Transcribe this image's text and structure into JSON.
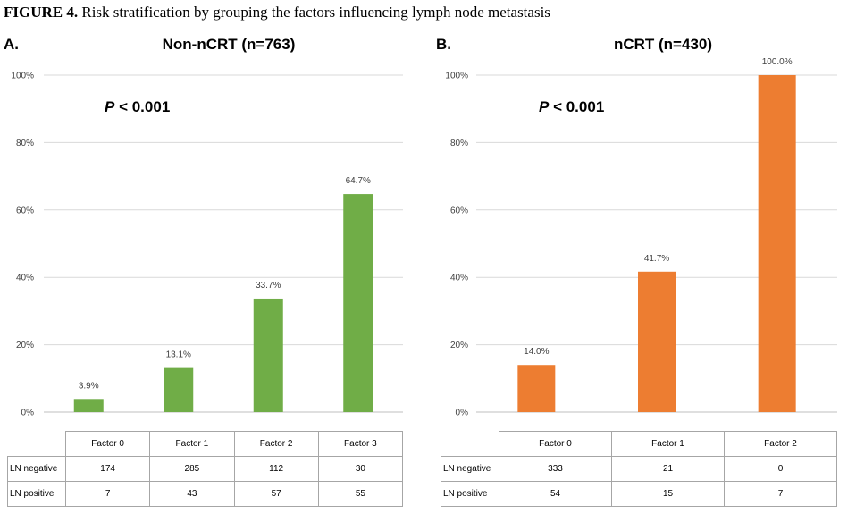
{
  "figure_title": {
    "label": "FIGURE 4.",
    "text": "Risk stratification by grouping the factors influencing lymph node metastasis"
  },
  "chart_data": [
    {
      "type": "bar",
      "panel": "A.",
      "title": "Non-nCRT (n=763)",
      "annotation": {
        "prefix": "P",
        "text": "< 0.001"
      },
      "categories": [
        "Factor 0",
        "Factor 1",
        "Factor 2",
        "Factor 3"
      ],
      "values": [
        3.9,
        13.1,
        33.7,
        64.7
      ],
      "data_labels": [
        "3.9%",
        "13.1%",
        "33.7%",
        "64.7%"
      ],
      "ylim": [
        0,
        100
      ],
      "yticks": [
        "0%",
        "20%",
        "40%",
        "60%",
        "80%",
        "100%"
      ],
      "ytick_values": [
        0,
        20,
        40,
        60,
        80,
        100
      ],
      "grid": true,
      "color": "#70ad47",
      "table": {
        "header": [
          "Factor 0",
          "Factor 1",
          "Factor 2",
          "Factor 3"
        ],
        "rows": [
          {
            "label": "LN negative",
            "values": [
              "174",
              "285",
              "112",
              "30"
            ]
          },
          {
            "label": "LN positive",
            "values": [
              "7",
              "43",
              "57",
              "55"
            ]
          }
        ]
      }
    },
    {
      "type": "bar",
      "panel": "B.",
      "title": "nCRT (n=430)",
      "annotation": {
        "prefix": "P",
        "text": "< 0.001"
      },
      "categories": [
        "Factor 0",
        "Factor 1",
        "Factor 2"
      ],
      "values": [
        14.0,
        41.7,
        100.0
      ],
      "data_labels": [
        "14.0%",
        "41.7%",
        "100.0%"
      ],
      "ylim": [
        0,
        100
      ],
      "yticks": [
        "0%",
        "20%",
        "40%",
        "60%",
        "80%",
        "100%"
      ],
      "ytick_values": [
        0,
        20,
        40,
        60,
        80,
        100
      ],
      "grid": true,
      "color": "#ed7d31",
      "table": {
        "header": [
          "Factor 0",
          "Factor 1",
          "Factor 2"
        ],
        "rows": [
          {
            "label": "LN negative",
            "values": [
              "333",
              "21",
              "0"
            ]
          },
          {
            "label": "LN positive",
            "values": [
              "54",
              "15",
              "7"
            ]
          }
        ]
      }
    }
  ]
}
